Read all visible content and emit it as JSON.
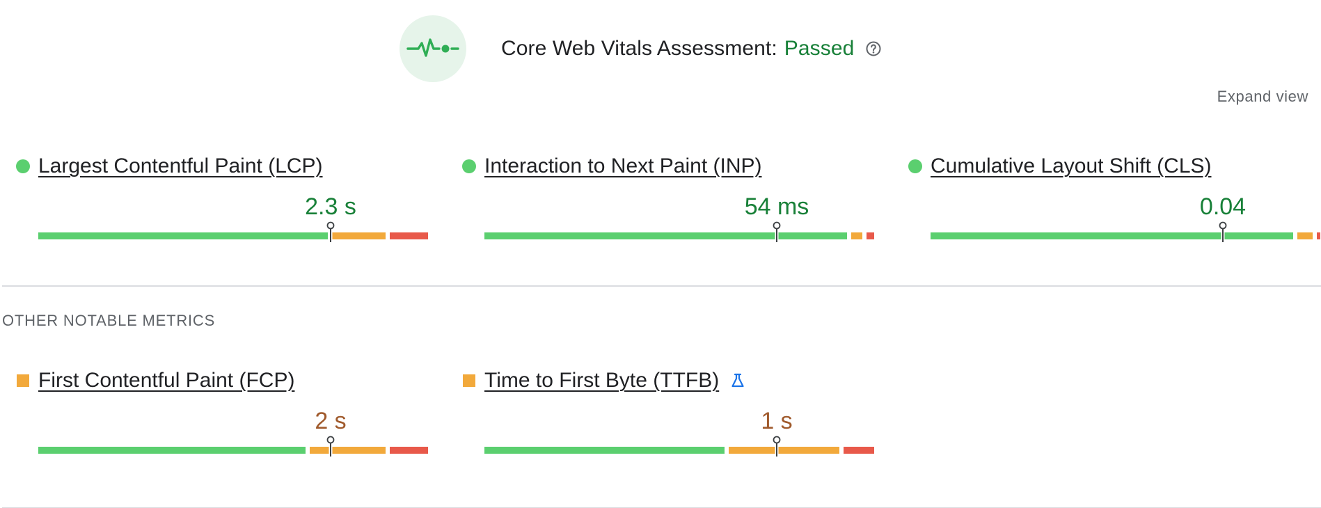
{
  "assessment": {
    "title": "Core Web Vitals Assessment:",
    "status": "Passed",
    "status_color": "#188038",
    "badge_icon": "pulse-icon",
    "help_icon": "help-circle-icon"
  },
  "expand_view_label": "Expand view",
  "core_metrics": [
    {
      "name": "Largest Contentful Paint (LCP)",
      "value": "2.3 s",
      "rating": "good",
      "indicator": "green-circle",
      "distribution": {
        "good": 0.76,
        "needs_improvement": 0.14,
        "poor": 0.1
      },
      "marker_fraction": 0.75
    },
    {
      "name": "Interaction to Next Paint (INP)",
      "value": "54 ms",
      "rating": "good",
      "indicator": "green-circle",
      "distribution": {
        "good": 0.95,
        "needs_improvement": 0.03,
        "poor": 0.02
      },
      "marker_fraction": 0.75
    },
    {
      "name": "Cumulative Layout Shift (CLS)",
      "value": "0.04",
      "rating": "good",
      "indicator": "green-circle",
      "distribution": {
        "good": 0.95,
        "needs_improvement": 0.04,
        "poor": 0.01
      },
      "marker_fraction": 0.75
    }
  ],
  "other_section_label": "OTHER NOTABLE METRICS",
  "other_metrics": [
    {
      "name": "First Contentful Paint (FCP)",
      "value": "2 s",
      "rating": "needs-improvement",
      "indicator": "orange-square",
      "distribution": {
        "good": 0.7,
        "needs_improvement": 0.2,
        "poor": 0.1
      },
      "marker_fraction": 0.75
    },
    {
      "name": "Time to First Byte (TTFB)",
      "value": "1 s",
      "rating": "needs-improvement",
      "indicator": "orange-square",
      "experimental_icon": "flask-icon",
      "distribution": {
        "good": 0.63,
        "needs_improvement": 0.29,
        "poor": 0.08
      },
      "marker_fraction": 0.75
    }
  ]
}
